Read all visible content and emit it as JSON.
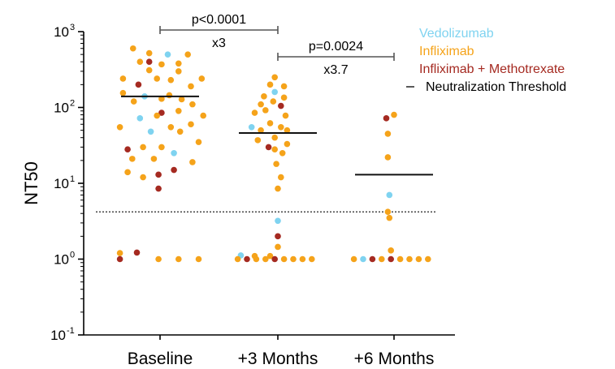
{
  "chart_data": {
    "type": "scatter",
    "ylabel": "NT50",
    "yscale": "log",
    "ylim": [
      0.1,
      1000
    ],
    "y_ticks": [
      {
        "base": "10",
        "exp": "3",
        "value": 1000
      },
      {
        "base": "10",
        "exp": "2",
        "value": 100
      },
      {
        "base": "10",
        "exp": "1",
        "value": 10
      },
      {
        "base": "10",
        "exp": "0",
        "value": 1
      },
      {
        "base": "10",
        "exp": "-1",
        "value": 0.1
      }
    ],
    "categories": [
      "Baseline",
      "+3 Months",
      "+6 Months"
    ],
    "threshold": 4.2,
    "medians": [
      140,
      46,
      13
    ],
    "colors": {
      "Vedolizumab": "#7fd3f0",
      "Infliximab": "#f5a31a",
      "Infliximab + Methotrexate": "#a52a21"
    },
    "legend": [
      {
        "label": "Vedolizumab",
        "color": "#7fd3f0",
        "marker": "none"
      },
      {
        "label": "Infliximab",
        "color": "#f5a31a",
        "marker": "none"
      },
      {
        "label": "Infliximab + Methotrexate",
        "color": "#a52a21",
        "marker": "none"
      },
      {
        "label": "Neutralization Threshold",
        "color": "#000000",
        "marker": "dash"
      }
    ],
    "comparisons": [
      {
        "from": 0,
        "to": 1,
        "p": "p<0.0001",
        "fold": "x3"
      },
      {
        "from": 1,
        "to": 2,
        "p": "p=0.0024",
        "fold": "x3.7"
      }
    ],
    "points": [
      {
        "cat": 0,
        "offset": -0.35,
        "y": 600,
        "group": "Infliximab"
      },
      {
        "cat": 0,
        "offset": -0.14,
        "y": 520,
        "group": "Infliximab"
      },
      {
        "cat": 0,
        "offset": 0.1,
        "y": 500,
        "group": "Vedolizumab"
      },
      {
        "cat": 0,
        "offset": 0.36,
        "y": 500,
        "group": "Infliximab"
      },
      {
        "cat": 0,
        "offset": -0.14,
        "y": 400,
        "group": "Infliximab + Methotrexate"
      },
      {
        "cat": 0,
        "offset": 0.24,
        "y": 380,
        "group": "Infliximab"
      },
      {
        "cat": 0,
        "offset": -0.26,
        "y": 400,
        "group": "Infliximab"
      },
      {
        "cat": 0,
        "offset": 0.02,
        "y": 370,
        "group": "Infliximab"
      },
      {
        "cat": 0,
        "offset": -0.14,
        "y": 310,
        "group": "Infliximab"
      },
      {
        "cat": 0,
        "offset": 0.24,
        "y": 300,
        "group": "Infliximab"
      },
      {
        "cat": 0,
        "offset": -0.48,
        "y": 240,
        "group": "Infliximab"
      },
      {
        "cat": 0,
        "offset": -0.04,
        "y": 240,
        "group": "Infliximab"
      },
      {
        "cat": 0,
        "offset": 0.54,
        "y": 240,
        "group": "Infliximab"
      },
      {
        "cat": 0,
        "offset": 0.14,
        "y": 230,
        "group": "Infliximab"
      },
      {
        "cat": 0,
        "offset": -0.28,
        "y": 200,
        "group": "Infliximab + Methotrexate"
      },
      {
        "cat": 0,
        "offset": 0.4,
        "y": 190,
        "group": "Infliximab"
      },
      {
        "cat": 0,
        "offset": -0.48,
        "y": 155,
        "group": "Infliximab"
      },
      {
        "cat": 0,
        "offset": 0.12,
        "y": 145,
        "group": "Infliximab"
      },
      {
        "cat": 0,
        "offset": -0.2,
        "y": 140,
        "group": "Vedolizumab"
      },
      {
        "cat": 0,
        "offset": 0.02,
        "y": 130,
        "group": "Infliximab"
      },
      {
        "cat": 0,
        "offset": 0.28,
        "y": 128,
        "group": "Infliximab"
      },
      {
        "cat": 0,
        "offset": -0.34,
        "y": 120,
        "group": "Infliximab"
      },
      {
        "cat": 0,
        "offset": 0.42,
        "y": 110,
        "group": "Infliximab"
      },
      {
        "cat": 0,
        "offset": 0.24,
        "y": 90,
        "group": "Infliximab"
      },
      {
        "cat": 0,
        "offset": 0.02,
        "y": 85,
        "group": "Infliximab + Methotrexate"
      },
      {
        "cat": 0,
        "offset": -0.04,
        "y": 78,
        "group": "Infliximab"
      },
      {
        "cat": 0,
        "offset": 0.56,
        "y": 78,
        "group": "Infliximab"
      },
      {
        "cat": 0,
        "offset": -0.26,
        "y": 72,
        "group": "Vedolizumab"
      },
      {
        "cat": 0,
        "offset": 0.4,
        "y": 60,
        "group": "Infliximab"
      },
      {
        "cat": 0,
        "offset": -0.52,
        "y": 55,
        "group": "Infliximab"
      },
      {
        "cat": 0,
        "offset": 0.14,
        "y": 55,
        "group": "Infliximab"
      },
      {
        "cat": 0,
        "offset": -0.12,
        "y": 48,
        "group": "Vedolizumab"
      },
      {
        "cat": 0,
        "offset": 0.26,
        "y": 48,
        "group": "Infliximab"
      },
      {
        "cat": 0,
        "offset": 0.5,
        "y": 35,
        "group": "Infliximab"
      },
      {
        "cat": 0,
        "offset": -0.22,
        "y": 30,
        "group": "Infliximab"
      },
      {
        "cat": 0,
        "offset": 0.02,
        "y": 30,
        "group": "Infliximab"
      },
      {
        "cat": 0,
        "offset": -0.42,
        "y": 28,
        "group": "Infliximab + Methotrexate"
      },
      {
        "cat": 0,
        "offset": 0.18,
        "y": 25,
        "group": "Vedolizumab"
      },
      {
        "cat": 0,
        "offset": -0.36,
        "y": 21,
        "group": "Infliximab"
      },
      {
        "cat": 0,
        "offset": -0.08,
        "y": 21,
        "group": "Infliximab"
      },
      {
        "cat": 0,
        "offset": 0.42,
        "y": 19,
        "group": "Infliximab"
      },
      {
        "cat": 0,
        "offset": 0.18,
        "y": 15,
        "group": "Infliximab + Methotrexate"
      },
      {
        "cat": 0,
        "offset": -0.42,
        "y": 14,
        "group": "Infliximab"
      },
      {
        "cat": 0,
        "offset": -0.02,
        "y": 13,
        "group": "Infliximab + Methotrexate"
      },
      {
        "cat": 0,
        "offset": -0.22,
        "y": 12,
        "group": "Infliximab"
      },
      {
        "cat": 0,
        "offset": -0.02,
        "y": 8.5,
        "group": "Infliximab + Methotrexate"
      },
      {
        "cat": 0,
        "offset": -0.52,
        "y": 1.2,
        "group": "Infliximab"
      },
      {
        "cat": 0,
        "offset": -0.3,
        "y": 1.22,
        "group": "Infliximab + Methotrexate"
      },
      {
        "cat": 0,
        "offset": -0.52,
        "y": 1,
        "group": "Infliximab + Methotrexate"
      },
      {
        "cat": 0,
        "offset": -0.02,
        "y": 1,
        "group": "Infliximab"
      },
      {
        "cat": 0,
        "offset": 0.24,
        "y": 1,
        "group": "Infliximab"
      },
      {
        "cat": 0,
        "offset": 0.5,
        "y": 1,
        "group": "Infliximab"
      },
      {
        "cat": 1,
        "offset": -0.04,
        "y": 250,
        "group": "Infliximab"
      },
      {
        "cat": 1,
        "offset": -0.1,
        "y": 200,
        "group": "Infliximab"
      },
      {
        "cat": 1,
        "offset": 0.08,
        "y": 190,
        "group": "Infliximab"
      },
      {
        "cat": 1,
        "offset": -0.04,
        "y": 160,
        "group": "Vedolizumab"
      },
      {
        "cat": 1,
        "offset": -0.18,
        "y": 140,
        "group": "Infliximab"
      },
      {
        "cat": 1,
        "offset": 0.08,
        "y": 135,
        "group": "Infliximab"
      },
      {
        "cat": 1,
        "offset": -0.06,
        "y": 120,
        "group": "Infliximab"
      },
      {
        "cat": 1,
        "offset": -0.22,
        "y": 110,
        "group": "Infliximab"
      },
      {
        "cat": 1,
        "offset": 0.04,
        "y": 105,
        "group": "Infliximab + Methotrexate"
      },
      {
        "cat": 1,
        "offset": -0.16,
        "y": 92,
        "group": "Infliximab"
      },
      {
        "cat": 1,
        "offset": -0.3,
        "y": 85,
        "group": "Infliximab"
      },
      {
        "cat": 1,
        "offset": 0.1,
        "y": 78,
        "group": "Infliximab"
      },
      {
        "cat": 1,
        "offset": -0.1,
        "y": 62,
        "group": "Infliximab"
      },
      {
        "cat": 1,
        "offset": -0.34,
        "y": 55,
        "group": "Vedolizumab"
      },
      {
        "cat": 1,
        "offset": 0.04,
        "y": 55,
        "group": "Infliximab"
      },
      {
        "cat": 1,
        "offset": -0.22,
        "y": 50,
        "group": "Infliximab"
      },
      {
        "cat": 1,
        "offset": 0.12,
        "y": 50,
        "group": "Infliximab"
      },
      {
        "cat": 1,
        "offset": -0.04,
        "y": 40,
        "group": "Infliximab"
      },
      {
        "cat": 1,
        "offset": -0.26,
        "y": 37,
        "group": "Infliximab"
      },
      {
        "cat": 1,
        "offset": 0.12,
        "y": 33,
        "group": "Infliximab"
      },
      {
        "cat": 1,
        "offset": -0.12,
        "y": 30,
        "group": "Infliximab + Methotrexate"
      },
      {
        "cat": 1,
        "offset": -0.04,
        "y": 28,
        "group": "Infliximab"
      },
      {
        "cat": 1,
        "offset": 0.06,
        "y": 25,
        "group": "Infliximab"
      },
      {
        "cat": 1,
        "offset": -0.02,
        "y": 18,
        "group": "Infliximab"
      },
      {
        "cat": 1,
        "offset": 0.04,
        "y": 12,
        "group": "Infliximab"
      },
      {
        "cat": 1,
        "offset": 0.0,
        "y": 8.5,
        "group": "Infliximab"
      },
      {
        "cat": 1,
        "offset": 0.0,
        "y": 3.2,
        "group": "Vedolizumab"
      },
      {
        "cat": 1,
        "offset": 0.0,
        "y": 2.0,
        "group": "Infliximab + Methotrexate"
      },
      {
        "cat": 1,
        "offset": 0.0,
        "y": 1.45,
        "group": "Infliximab"
      },
      {
        "cat": 1,
        "offset": -0.48,
        "y": 1.12,
        "group": "Vedolizumab"
      },
      {
        "cat": 1,
        "offset": -0.3,
        "y": 1.1,
        "group": "Infliximab"
      },
      {
        "cat": 1,
        "offset": -0.1,
        "y": 1.1,
        "group": "Infliximab"
      },
      {
        "cat": 1,
        "offset": -0.52,
        "y": 1,
        "group": "Infliximab"
      },
      {
        "cat": 1,
        "offset": -0.4,
        "y": 1,
        "group": "Infliximab + Methotrexate"
      },
      {
        "cat": 1,
        "offset": -0.28,
        "y": 1,
        "group": "Infliximab"
      },
      {
        "cat": 1,
        "offset": -0.16,
        "y": 1,
        "group": "Infliximab"
      },
      {
        "cat": 1,
        "offset": -0.04,
        "y": 1,
        "group": "Infliximab + Methotrexate"
      },
      {
        "cat": 1,
        "offset": 0.08,
        "y": 1,
        "group": "Infliximab"
      },
      {
        "cat": 1,
        "offset": 0.2,
        "y": 1,
        "group": "Infliximab"
      },
      {
        "cat": 1,
        "offset": 0.32,
        "y": 1,
        "group": "Infliximab"
      },
      {
        "cat": 1,
        "offset": 0.44,
        "y": 1,
        "group": "Infliximab"
      },
      {
        "cat": 2,
        "offset": 0.0,
        "y": 80,
        "group": "Infliximab"
      },
      {
        "cat": 2,
        "offset": -0.1,
        "y": 72,
        "group": "Infliximab + Methotrexate"
      },
      {
        "cat": 2,
        "offset": -0.08,
        "y": 45,
        "group": "Infliximab"
      },
      {
        "cat": 2,
        "offset": -0.08,
        "y": 22,
        "group": "Infliximab"
      },
      {
        "cat": 2,
        "offset": -0.06,
        "y": 7.0,
        "group": "Vedolizumab"
      },
      {
        "cat": 2,
        "offset": -0.08,
        "y": 4.2,
        "group": "Infliximab"
      },
      {
        "cat": 2,
        "offset": -0.06,
        "y": 3.5,
        "group": "Infliximab"
      },
      {
        "cat": 2,
        "offset": -0.04,
        "y": 1.3,
        "group": "Infliximab"
      },
      {
        "cat": 2,
        "offset": -0.52,
        "y": 1,
        "group": "Infliximab"
      },
      {
        "cat": 2,
        "offset": -0.4,
        "y": 1,
        "group": "Vedolizumab"
      },
      {
        "cat": 2,
        "offset": -0.28,
        "y": 1,
        "group": "Infliximab + Methotrexate"
      },
      {
        "cat": 2,
        "offset": -0.16,
        "y": 1,
        "group": "Infliximab"
      },
      {
        "cat": 2,
        "offset": -0.04,
        "y": 1,
        "group": "Infliximab + Methotrexate"
      },
      {
        "cat": 2,
        "offset": 0.08,
        "y": 1,
        "group": "Infliximab"
      },
      {
        "cat": 2,
        "offset": 0.2,
        "y": 1,
        "group": "Infliximab"
      },
      {
        "cat": 2,
        "offset": 0.32,
        "y": 1,
        "group": "Infliximab"
      },
      {
        "cat": 2,
        "offset": 0.44,
        "y": 1,
        "group": "Infliximab"
      }
    ]
  }
}
